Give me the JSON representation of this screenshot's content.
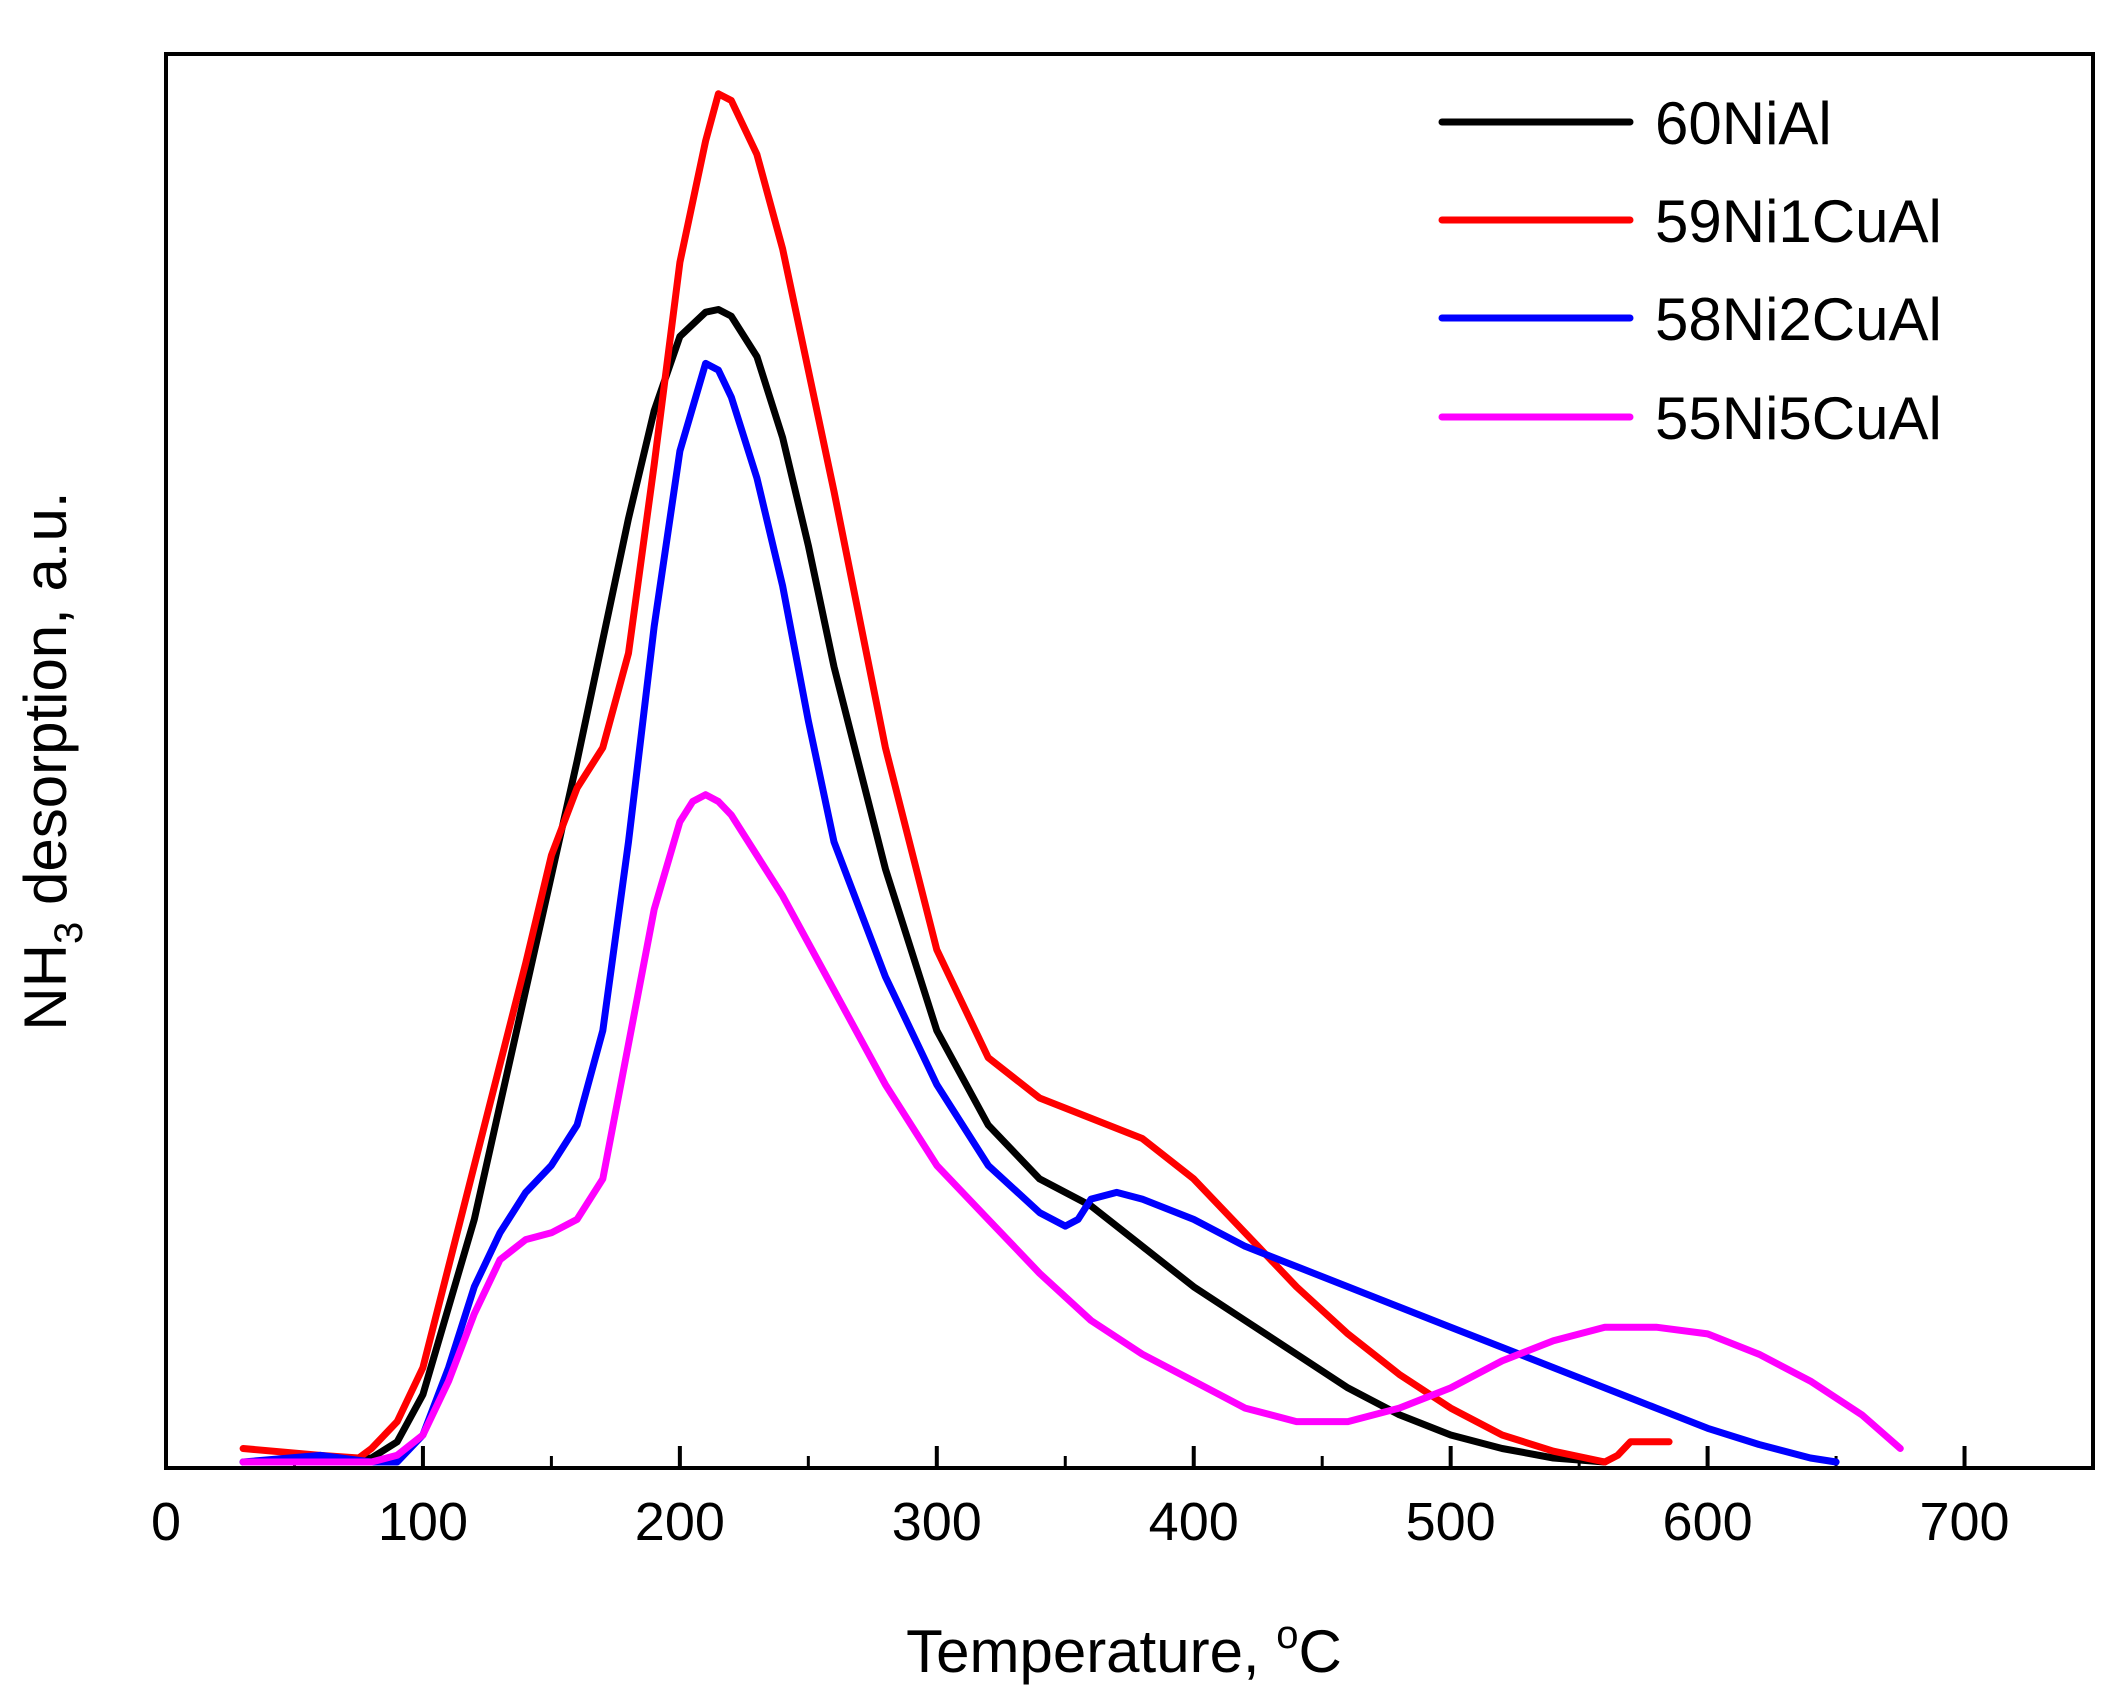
{
  "chart_data": {
    "type": "line",
    "xlabel": "Temperature, °C",
    "xlabel_parts": {
      "main": "Temperature, ",
      "sup": "o",
      "unit": "C"
    },
    "ylabel": "NH3 desorption, a.u.",
    "ylabel_parts": {
      "pre": "NH",
      "sub": "3",
      "post": " desorption, a.u."
    },
    "xlim": [
      0,
      750
    ],
    "ylim": [
      0,
      100
    ],
    "xticks": [
      0,
      100,
      200,
      300,
      400,
      500,
      600,
      700
    ],
    "y_tick_labels_shown": false,
    "grid": false,
    "legend_position": "top-right",
    "series": [
      {
        "name": "60NiAl",
        "color": "#000000",
        "x": [
          30,
          60,
          80,
          90,
          100,
          120,
          140,
          160,
          180,
          190,
          200,
          210,
          215,
          220,
          230,
          240,
          250,
          260,
          280,
          300,
          320,
          340,
          350,
          360,
          380,
          400,
          420,
          440,
          460,
          480,
          500,
          520,
          540,
          560
        ],
        "y": [
          0,
          0,
          0.3,
          1.5,
          5,
          18,
          35,
          52,
          70,
          78,
          83.5,
          85.3,
          85.5,
          85,
          82,
          76,
          68,
          59,
          44,
          32,
          25,
          21,
          20,
          19,
          16,
          13,
          10.5,
          8,
          5.5,
          3.5,
          2,
          1,
          0.3,
          0
        ]
      },
      {
        "name": "59Ni1CuAl",
        "color": "#ff0000",
        "x": [
          30,
          60,
          75,
          80,
          90,
          100,
          120,
          140,
          150,
          160,
          170,
          180,
          190,
          200,
          210,
          215,
          220,
          230,
          240,
          260,
          280,
          300,
          320,
          340,
          360,
          380,
          400,
          420,
          440,
          460,
          480,
          500,
          520,
          540,
          560,
          565,
          570,
          585
        ],
        "y": [
          1,
          0.5,
          0.3,
          1,
          3,
          7,
          22,
          37,
          45,
          50,
          53,
          60,
          74,
          89,
          98,
          101.5,
          101,
          97,
          90,
          72,
          53,
          38,
          30,
          27,
          25.5,
          24,
          21,
          17,
          13,
          9.5,
          6.5,
          4,
          2,
          0.8,
          0,
          0.5,
          1.5,
          1.5
        ]
      },
      {
        "name": "58Ni2CuAl",
        "color": "#0000ff",
        "x": [
          30,
          60,
          80,
          90,
          100,
          110,
          120,
          130,
          140,
          150,
          160,
          170,
          180,
          190,
          200,
          210,
          215,
          220,
          230,
          240,
          250,
          260,
          280,
          300,
          320,
          340,
          350,
          355,
          360,
          370,
          380,
          400,
          420,
          440,
          460,
          480,
          500,
          520,
          540,
          560,
          580,
          600,
          620,
          640,
          650
        ],
        "y": [
          0,
          0.5,
          0,
          0,
          2,
          7,
          13,
          17,
          20,
          22,
          25,
          32,
          46,
          62,
          75,
          81.5,
          81,
          79,
          73,
          65,
          55,
          46,
          36,
          28,
          22,
          18.5,
          17.5,
          18,
          19.5,
          20,
          19.5,
          18,
          16,
          14.5,
          13,
          11.5,
          10,
          8.5,
          7,
          5.5,
          4,
          2.5,
          1.3,
          0.3,
          0
        ]
      },
      {
        "name": "55Ni5CuAl",
        "color": "#ff00ff",
        "x": [
          30,
          60,
          80,
          90,
          100,
          110,
          120,
          130,
          140,
          150,
          160,
          170,
          180,
          190,
          200,
          205,
          210,
          215,
          220,
          240,
          260,
          280,
          300,
          320,
          340,
          360,
          380,
          400,
          420,
          440,
          460,
          480,
          500,
          520,
          540,
          560,
          580,
          600,
          620,
          640,
          660,
          675
        ],
        "y": [
          0,
          0,
          0,
          0.5,
          2,
          6,
          11,
          15,
          16.5,
          17,
          18,
          21,
          31,
          41,
          47.5,
          49,
          49.5,
          49,
          48,
          42,
          35,
          28,
          22,
          18,
          14,
          10.5,
          8,
          6,
          4,
          3,
          3,
          4,
          5.5,
          7.5,
          9,
          10,
          10,
          9.5,
          8,
          6,
          3.5,
          1
        ]
      }
    ]
  }
}
